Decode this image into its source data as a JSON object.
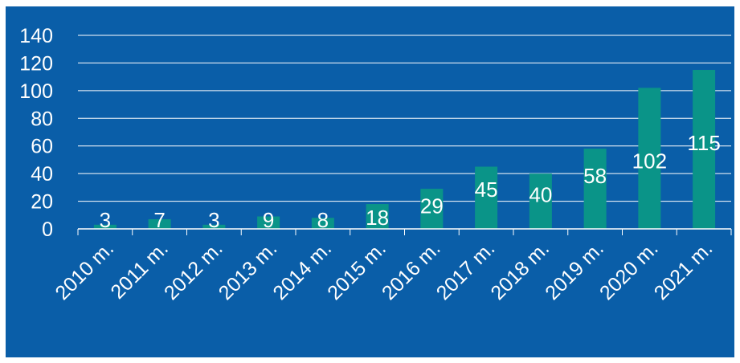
{
  "chart_data": {
    "type": "bar",
    "categories": [
      "2010 m.",
      "2011 m.",
      "2012 m.",
      "2013 m.",
      "2014 m.",
      "2015 m.",
      "2016 m.",
      "2017 m.",
      "2018 m.",
      "2019 m.",
      "2020 m.",
      "2021 m."
    ],
    "series": [
      {
        "values": [
          3,
          7,
          3,
          9,
          8,
          18,
          29,
          45,
          40,
          58,
          102,
          115
        ]
      }
    ],
    "data_labels": [
      "3",
      "7",
      "3",
      "9",
      "8",
      "18",
      "29",
      "45",
      "40",
      "58",
      "102",
      "115"
    ],
    "y_ticks": [
      "0",
      "20",
      "40",
      "60",
      "80",
      "100",
      "120",
      "140"
    ],
    "ylim": [
      0,
      140
    ],
    "grid": true,
    "legend": "none",
    "colors": {
      "background": "#0a5ea8",
      "bar": "#0a9488",
      "text": "#ffffff",
      "grid": "#ffffff"
    }
  }
}
